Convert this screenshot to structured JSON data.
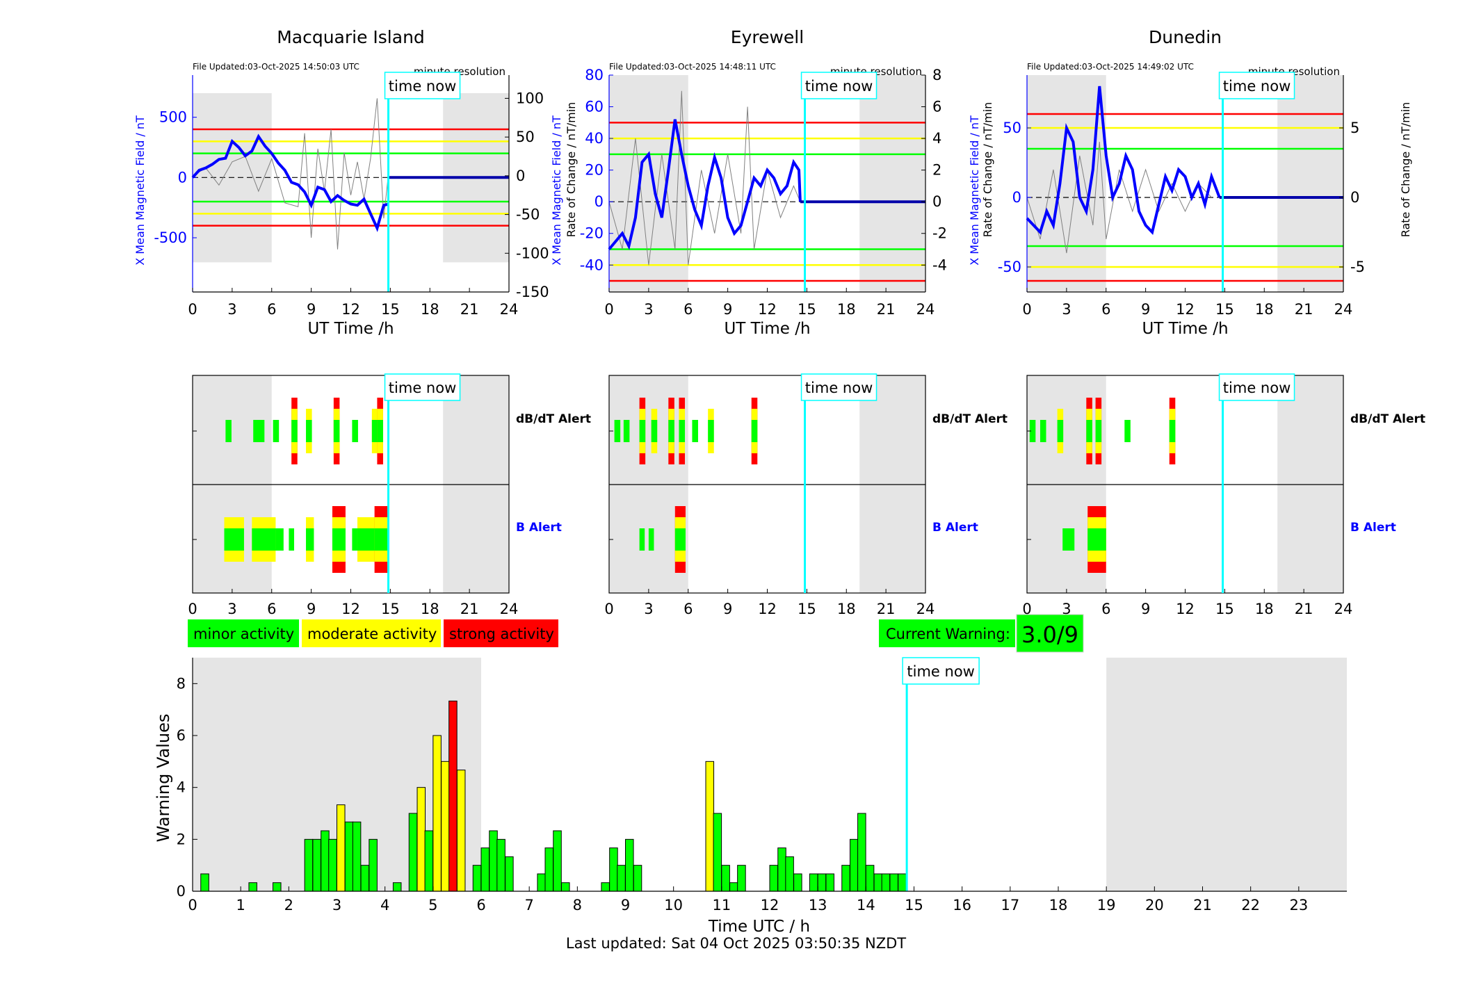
{
  "colors": {
    "minor": "#00ff00",
    "moderate": "#ffff00",
    "strong": "#ff0000",
    "field_line": "#0000ff",
    "time_now": "#00ffff",
    "night_shade": "#e5e5e5",
    "rate_trace": "#808080"
  },
  "stations": [
    {
      "name": "Macquarie Island",
      "file_updated": "File Updated:03-Oct-2025 14:50:03 UTC",
      "resolution": "minute resolution",
      "left_ylabel": "X Mean Magnetic Field / nT",
      "right_ylabel": "Rate of Change / nT/min",
      "left_ylim": [
        -950,
        850
      ],
      "left_ticks": [
        -500,
        0,
        500
      ],
      "right_ylim": [
        -150,
        130
      ],
      "right_ticks": [
        -150,
        -100,
        -50,
        0,
        50,
        100
      ],
      "thresholds": {
        "minor": 200,
        "moderate": 300,
        "strong": 400
      },
      "field_trace": [
        [
          0,
          0
        ],
        [
          0.5,
          60
        ],
        [
          1,
          80
        ],
        [
          1.5,
          110
        ],
        [
          2,
          150
        ],
        [
          2.5,
          160
        ],
        [
          3,
          300
        ],
        [
          3.5,
          250
        ],
        [
          4,
          180
        ],
        [
          4.5,
          220
        ],
        [
          5,
          340
        ],
        [
          5.5,
          260
        ],
        [
          6,
          200
        ],
        [
          6.5,
          120
        ],
        [
          7,
          60
        ],
        [
          7.5,
          -40
        ],
        [
          8,
          -60
        ],
        [
          8.5,
          -120
        ],
        [
          9,
          -230
        ],
        [
          9.5,
          -80
        ],
        [
          10,
          -100
        ],
        [
          10.5,
          -200
        ],
        [
          11,
          -150
        ],
        [
          11.5,
          -190
        ],
        [
          12,
          -220
        ],
        [
          12.5,
          -230
        ],
        [
          13,
          -180
        ],
        [
          13.5,
          -300
        ],
        [
          14,
          -420
        ],
        [
          14.5,
          -230
        ],
        [
          14.9,
          -220
        ]
      ],
      "field_future": [
        [
          14.9,
          0
        ],
        [
          24,
          0
        ]
      ],
      "rate_trace": [
        [
          0,
          0
        ],
        [
          1,
          10
        ],
        [
          2,
          -12
        ],
        [
          3,
          18
        ],
        [
          4,
          25
        ],
        [
          5,
          -20
        ],
        [
          6,
          22
        ],
        [
          7,
          -35
        ],
        [
          8,
          -40
        ],
        [
          8.5,
          55
        ],
        [
          9,
          -80
        ],
        [
          9.5,
          35
        ],
        [
          10,
          -20
        ],
        [
          10.5,
          60
        ],
        [
          11,
          -95
        ],
        [
          11.5,
          30
        ],
        [
          12,
          -25
        ],
        [
          12.5,
          18
        ],
        [
          13,
          -30
        ],
        [
          13.5,
          22
        ],
        [
          14,
          100
        ],
        [
          14.5,
          -55
        ],
        [
          14.9,
          10
        ]
      ],
      "alerts_dbdt": [
        {
          "t": 2.5,
          "level": 1
        },
        {
          "t": 4.6,
          "level": 1
        },
        {
          "t": 5.0,
          "level": 1
        },
        {
          "t": 6.1,
          "level": 1
        },
        {
          "t": 7.5,
          "level": 3
        },
        {
          "t": 8.6,
          "level": 2
        },
        {
          "t": 10.7,
          "level": 3
        },
        {
          "t": 12.1,
          "level": 1
        },
        {
          "t": 13.6,
          "level": 2
        },
        {
          "t": 14.0,
          "level": 3
        }
      ],
      "alerts_b": [
        {
          "t": 2.4,
          "width": 1.5,
          "level": 2
        },
        {
          "t": 4.5,
          "width": 1.8,
          "level": 2
        },
        {
          "t": 6.3,
          "width": 0.6,
          "level": 1
        },
        {
          "t": 7.3,
          "width": 0.4,
          "level": 1
        },
        {
          "t": 8.6,
          "width": 0.6,
          "level": 2
        },
        {
          "t": 10.6,
          "width": 1.0,
          "level": 3
        },
        {
          "t": 12.1,
          "width": 0.4,
          "level": 1
        },
        {
          "t": 12.5,
          "width": 1.5,
          "level": 2
        },
        {
          "t": 13.8,
          "width": 1.1,
          "level": 3
        }
      ]
    },
    {
      "name": "Eyrewell",
      "file_updated": "File Updated:03-Oct-2025 14:48:11 UTC",
      "resolution": "minute resolution",
      "left_ylabel": "X Mean Magnetic Field / nT",
      "right_ylabel": "Rate of Change / nT/min",
      "left_ylim": [
        -57,
        80
      ],
      "left_ticks": [
        -40,
        -20,
        0,
        20,
        40,
        60,
        80
      ],
      "right_ylim": [
        -5.7,
        8
      ],
      "right_ticks": [
        -4,
        -2,
        0,
        2,
        4,
        6,
        8
      ],
      "thresholds": {
        "minor": 30,
        "moderate": 40,
        "strong": 50
      },
      "field_trace": [
        [
          0,
          -30
        ],
        [
          0.5,
          -25
        ],
        [
          1,
          -20
        ],
        [
          1.5,
          -28
        ],
        [
          2,
          -10
        ],
        [
          2.5,
          25
        ],
        [
          3,
          30
        ],
        [
          3.5,
          5
        ],
        [
          4,
          -10
        ],
        [
          4.5,
          20
        ],
        [
          5,
          52
        ],
        [
          5.5,
          30
        ],
        [
          6,
          10
        ],
        [
          6.5,
          -5
        ],
        [
          7,
          -15
        ],
        [
          7.5,
          10
        ],
        [
          8,
          28
        ],
        [
          8.5,
          15
        ],
        [
          9,
          -10
        ],
        [
          9.5,
          -20
        ],
        [
          10,
          -15
        ],
        [
          10.5,
          0
        ],
        [
          11,
          15
        ],
        [
          11.5,
          10
        ],
        [
          12,
          20
        ],
        [
          12.5,
          15
        ],
        [
          13,
          5
        ],
        [
          13.5,
          10
        ],
        [
          14,
          25
        ],
        [
          14.4,
          20
        ],
        [
          14.5,
          0
        ]
      ],
      "field_future": [
        [
          14.5,
          0
        ],
        [
          24,
          0
        ]
      ],
      "rate_trace": [
        [
          0,
          0
        ],
        [
          1,
          -3
        ],
        [
          2,
          4
        ],
        [
          3,
          -4
        ],
        [
          4,
          3
        ],
        [
          5,
          -3
        ],
        [
          5.5,
          7
        ],
        [
          6,
          -4
        ],
        [
          7,
          2
        ],
        [
          8,
          -2
        ],
        [
          9,
          3
        ],
        [
          10,
          -2
        ],
        [
          10.5,
          6
        ],
        [
          11,
          -3
        ],
        [
          12,
          2
        ],
        [
          13,
          -1
        ],
        [
          14,
          1
        ],
        [
          14.5,
          0
        ]
      ],
      "alerts_dbdt": [
        {
          "t": 0.4,
          "level": 1
        },
        {
          "t": 1.1,
          "level": 1
        },
        {
          "t": 2.3,
          "level": 3
        },
        {
          "t": 3.2,
          "level": 2
        },
        {
          "t": 4.5,
          "level": 3
        },
        {
          "t": 5.3,
          "level": 3
        },
        {
          "t": 6.3,
          "level": 1
        },
        {
          "t": 7.5,
          "level": 2
        },
        {
          "t": 10.8,
          "level": 3
        }
      ],
      "alerts_b": [
        {
          "t": 2.3,
          "width": 0.4,
          "level": 1
        },
        {
          "t": 3.0,
          "width": 0.4,
          "level": 1
        },
        {
          "t": 5.0,
          "width": 0.8,
          "level": 3
        }
      ]
    },
    {
      "name": "Dunedin",
      "file_updated": "File Updated:03-Oct-2025 14:49:02 UTC",
      "resolution": "minute resolution",
      "left_ylabel": "X Mean Magnetic Field / nT",
      "right_ylabel": "Rate of Change / nT/min",
      "left_ylim": [
        -68,
        88
      ],
      "left_ticks": [
        -50,
        0,
        50
      ],
      "right_ylim": [
        -6.8,
        8.8
      ],
      "right_ticks": [
        -5,
        0,
        5
      ],
      "thresholds": {
        "minor": 35,
        "moderate": 50,
        "strong": 60
      },
      "field_trace": [
        [
          0,
          -15
        ],
        [
          0.5,
          -20
        ],
        [
          1,
          -25
        ],
        [
          1.5,
          -10
        ],
        [
          2,
          -20
        ],
        [
          2.5,
          10
        ],
        [
          3,
          50
        ],
        [
          3.5,
          40
        ],
        [
          4,
          0
        ],
        [
          4.5,
          -10
        ],
        [
          5,
          20
        ],
        [
          5.5,
          80
        ],
        [
          6,
          30
        ],
        [
          6.5,
          0
        ],
        [
          7,
          10
        ],
        [
          7.5,
          30
        ],
        [
          8,
          20
        ],
        [
          8.5,
          -10
        ],
        [
          9,
          -20
        ],
        [
          9.5,
          -25
        ],
        [
          10,
          -5
        ],
        [
          10.5,
          15
        ],
        [
          11,
          5
        ],
        [
          11.5,
          20
        ],
        [
          12,
          15
        ],
        [
          12.5,
          0
        ],
        [
          13,
          10
        ],
        [
          13.5,
          -5
        ],
        [
          14,
          15
        ],
        [
          14.4,
          5
        ],
        [
          14.6,
          0
        ]
      ],
      "field_future": [
        [
          14.6,
          0
        ],
        [
          24,
          0
        ]
      ],
      "rate_trace": [
        [
          0,
          0
        ],
        [
          1,
          -3
        ],
        [
          2,
          2
        ],
        [
          3,
          -4
        ],
        [
          4,
          3
        ],
        [
          5,
          -2
        ],
        [
          5.5,
          4
        ],
        [
          6,
          -3
        ],
        [
          7,
          2
        ],
        [
          8,
          -1
        ],
        [
          9,
          2
        ],
        [
          10,
          -1
        ],
        [
          11,
          1
        ],
        [
          12,
          -1
        ],
        [
          13,
          1
        ],
        [
          14,
          0
        ]
      ],
      "alerts_dbdt": [
        {
          "t": 0.2,
          "level": 1
        },
        {
          "t": 1.0,
          "level": 1
        },
        {
          "t": 2.3,
          "level": 2
        },
        {
          "t": 4.5,
          "level": 3
        },
        {
          "t": 5.2,
          "level": 3
        },
        {
          "t": 7.4,
          "level": 1
        },
        {
          "t": 10.8,
          "level": 3
        }
      ],
      "alerts_b": [
        {
          "t": 2.7,
          "width": 0.9,
          "level": 1
        },
        {
          "t": 4.6,
          "width": 1.4,
          "level": 3
        }
      ]
    }
  ],
  "field_axis": {
    "xlabel": "UT Time /h",
    "xticks": [
      0,
      3,
      6,
      9,
      12,
      15,
      18,
      21,
      24
    ],
    "time_now_label": "time now",
    "time_now_h": [
      14.85,
      14.85,
      14.85
    ]
  },
  "alert_axis": {
    "dbdt_label": "dB/dT Alert",
    "b_label": "B Alert",
    "xticks": [
      0,
      3,
      6,
      9,
      12,
      15,
      18,
      21,
      24
    ]
  },
  "legend": {
    "minor": "minor activity",
    "moderate": "moderate activity",
    "strong": "strong activity"
  },
  "current_warning": {
    "label": "Current Warning:",
    "value": "3.0/9"
  },
  "chart_data": {
    "type": "bar",
    "xlabel": "Time UTC / h",
    "ylabel": "Warning Values",
    "xlim": [
      0,
      24
    ],
    "ylim": [
      0,
      9
    ],
    "xticks": [
      0,
      1,
      2,
      3,
      4,
      5,
      6,
      7,
      8,
      9,
      10,
      11,
      12,
      13,
      14,
      15,
      16,
      17,
      18,
      19,
      20,
      21,
      22,
      23
    ],
    "yticks": [
      0,
      2,
      4,
      6,
      8
    ],
    "time_now_label": "time now",
    "time_now_h": 14.85,
    "night_shading_h": [
      [
        0,
        6
      ],
      [
        19,
        24
      ]
    ],
    "bin_width_h": 0.1667,
    "bars": [
      {
        "t": 0.17,
        "v": 0.67,
        "level": 1
      },
      {
        "t": 1.17,
        "v": 0.33,
        "level": 1
      },
      {
        "t": 1.67,
        "v": 0.33,
        "level": 1
      },
      {
        "t": 2.33,
        "v": 2.0,
        "level": 1
      },
      {
        "t": 2.5,
        "v": 2.0,
        "level": 1
      },
      {
        "t": 2.67,
        "v": 2.33,
        "level": 1
      },
      {
        "t": 2.83,
        "v": 2.0,
        "level": 1
      },
      {
        "t": 3.0,
        "v": 3.33,
        "level": 2
      },
      {
        "t": 3.17,
        "v": 2.67,
        "level": 1
      },
      {
        "t": 3.33,
        "v": 2.67,
        "level": 1
      },
      {
        "t": 3.5,
        "v": 1.0,
        "level": 1
      },
      {
        "t": 3.67,
        "v": 2.0,
        "level": 1
      },
      {
        "t": 4.17,
        "v": 0.33,
        "level": 1
      },
      {
        "t": 4.5,
        "v": 3.0,
        "level": 1
      },
      {
        "t": 4.67,
        "v": 4.0,
        "level": 2
      },
      {
        "t": 4.83,
        "v": 2.33,
        "level": 1
      },
      {
        "t": 5.0,
        "v": 6.0,
        "level": 2
      },
      {
        "t": 5.17,
        "v": 5.0,
        "level": 2
      },
      {
        "t": 5.33,
        "v": 7.33,
        "level": 3
      },
      {
        "t": 5.5,
        "v": 4.67,
        "level": 2
      },
      {
        "t": 5.83,
        "v": 1.0,
        "level": 1
      },
      {
        "t": 6.0,
        "v": 1.67,
        "level": 1
      },
      {
        "t": 6.17,
        "v": 2.33,
        "level": 1
      },
      {
        "t": 6.33,
        "v": 2.0,
        "level": 1
      },
      {
        "t": 6.5,
        "v": 1.33,
        "level": 1
      },
      {
        "t": 7.17,
        "v": 0.67,
        "level": 1
      },
      {
        "t": 7.33,
        "v": 1.67,
        "level": 1
      },
      {
        "t": 7.5,
        "v": 2.33,
        "level": 1
      },
      {
        "t": 7.67,
        "v": 0.33,
        "level": 1
      },
      {
        "t": 8.5,
        "v": 0.33,
        "level": 1
      },
      {
        "t": 8.67,
        "v": 1.67,
        "level": 1
      },
      {
        "t": 8.83,
        "v": 1.0,
        "level": 1
      },
      {
        "t": 9.0,
        "v": 2.0,
        "level": 1
      },
      {
        "t": 9.17,
        "v": 1.0,
        "level": 1
      },
      {
        "t": 10.67,
        "v": 5.0,
        "level": 2
      },
      {
        "t": 10.83,
        "v": 3.0,
        "level": 1
      },
      {
        "t": 11.0,
        "v": 1.0,
        "level": 1
      },
      {
        "t": 11.17,
        "v": 0.33,
        "level": 1
      },
      {
        "t": 11.33,
        "v": 1.0,
        "level": 1
      },
      {
        "t": 12.0,
        "v": 1.0,
        "level": 1
      },
      {
        "t": 12.17,
        "v": 1.67,
        "level": 1
      },
      {
        "t": 12.33,
        "v": 1.33,
        "level": 1
      },
      {
        "t": 12.5,
        "v": 0.67,
        "level": 1
      },
      {
        "t": 12.83,
        "v": 0.67,
        "level": 1
      },
      {
        "t": 13.0,
        "v": 0.67,
        "level": 1
      },
      {
        "t": 13.17,
        "v": 0.67,
        "level": 1
      },
      {
        "t": 13.5,
        "v": 1.0,
        "level": 1
      },
      {
        "t": 13.67,
        "v": 2.0,
        "level": 1
      },
      {
        "t": 13.83,
        "v": 3.0,
        "level": 1
      },
      {
        "t": 14.0,
        "v": 1.0,
        "level": 1
      },
      {
        "t": 14.17,
        "v": 0.67,
        "level": 1
      },
      {
        "t": 14.33,
        "v": 0.67,
        "level": 1
      },
      {
        "t": 14.5,
        "v": 0.67,
        "level": 1
      },
      {
        "t": 14.67,
        "v": 0.67,
        "level": 1
      }
    ]
  },
  "footer": "Last updated: Sat 04 Oct 2025 03:50:35 NZDT"
}
